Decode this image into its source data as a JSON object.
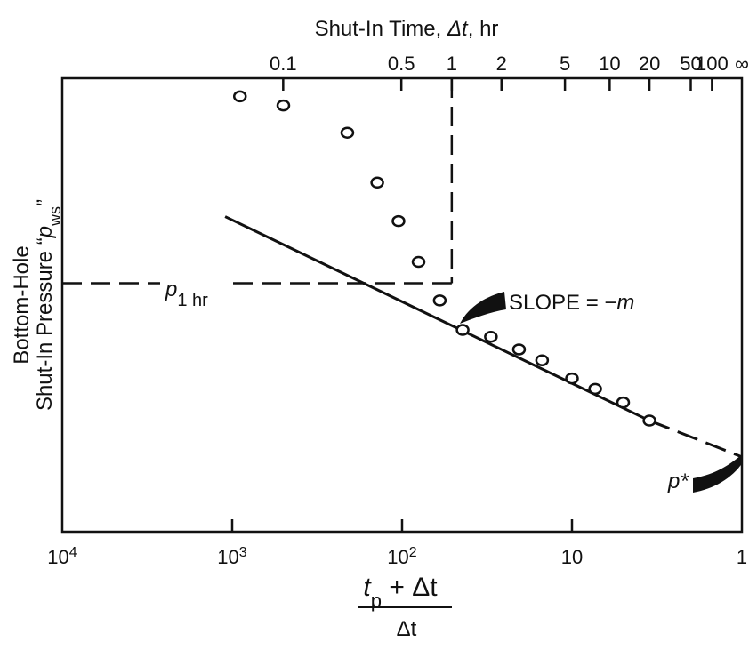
{
  "chart_data": {
    "type": "scatter",
    "title": "",
    "xaxis_bottom": {
      "label_numerator_main": "t",
      "label_numerator_sub": "p",
      "label_numerator_rest": " + Δt",
      "label_denominator": "Δt",
      "scale": "log",
      "reversed": true,
      "range": [
        10000,
        1
      ],
      "ticks": [
        {
          "value": 10000,
          "base": "10",
          "exp": "4"
        },
        {
          "value": 1000,
          "base": "10",
          "exp": "3"
        },
        {
          "value": 100,
          "base": "10",
          "exp": "2"
        },
        {
          "value": 10,
          "base": "10",
          "exp": ""
        },
        {
          "value": 1,
          "base": "1",
          "exp": ""
        }
      ]
    },
    "xaxis_top": {
      "label_prefix": "Shut-In Time, ",
      "label_var": "Δt",
      "label_suffix": ", hr",
      "producing_time_hr": 50,
      "ticks": [
        {
          "label": "0.1",
          "value": 0.1
        },
        {
          "label": "0.5",
          "value": 0.5
        },
        {
          "label": "1",
          "value": 1
        },
        {
          "label": "2",
          "value": 2
        },
        {
          "label": "5",
          "value": 5
        },
        {
          "label": "10",
          "value": 10
        },
        {
          "label": "20",
          "value": 20
        },
        {
          "label": "50",
          "value": 50
        },
        {
          "label": "100",
          "value": 100
        },
        {
          "label": "∞",
          "value": null
        }
      ]
    },
    "yaxis": {
      "label_line1": "Bottom-Hole",
      "label_line2_prefix": "Shut-In Pressure “",
      "label_line2_var": "p",
      "label_line2_sub": "ws",
      "label_line2_suffix": "”",
      "ticks": "none",
      "range": [
        0,
        100
      ]
    },
    "series": [
      {
        "points": [
          {
            "x": 900,
            "y": 96
          },
          {
            "x": 500,
            "y": 94
          },
          {
            "x": 210,
            "y": 88
          },
          {
            "x": 140,
            "y": 77
          },
          {
            "x": 105,
            "y": 68.5
          },
          {
            "x": 80,
            "y": 59.5
          },
          {
            "x": 60,
            "y": 51
          },
          {
            "x": 44,
            "y": 44.5
          },
          {
            "x": 30,
            "y": 43
          },
          {
            "x": 20.5,
            "y": 40.2
          },
          {
            "x": 15,
            "y": 37.8
          },
          {
            "x": 10,
            "y": 33.8
          },
          {
            "x": 7.3,
            "y": 31.5
          },
          {
            "x": 5,
            "y": 28.5
          },
          {
            "x": 3.5,
            "y": 24.5
          }
        ]
      }
    ],
    "straight_line": {
      "x_start": 1100,
      "y_start": 69.5,
      "x_end": 3.5,
      "y_end": 24.5,
      "extrapolated_to_x": 1,
      "y_at_1": 16.5
    },
    "reference_lines": {
      "x_at_1hr": 51,
      "y_p1hr": 54.8
    },
    "annotations": {
      "p1hr_main": "p",
      "p1hr_sub": "1 hr",
      "slope_prefix": "SLOPE = −",
      "slope_var": "m",
      "pstar": "p*"
    }
  }
}
